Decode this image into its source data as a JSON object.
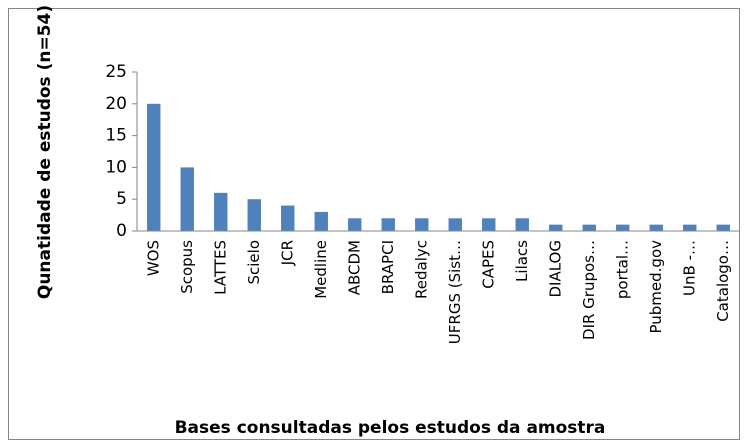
{
  "chart_data": {
    "type": "bar",
    "x_label": "Bases consultadas pelos estudos da amostra",
    "y_label": "Qunatidade de estudos (n=54)",
    "categories": [
      "WOS",
      "Scopus",
      "LATTES",
      "Scielo",
      "JCR",
      "Medline",
      "ABCDM",
      "BRAPCI",
      "Redalyc",
      "UFRGS (Sist…",
      "CAPES",
      "Lilacs",
      "DIALOG",
      "DIR Grupos…",
      "portal…",
      "Pubmed.gov",
      "UnB -…",
      "Catalogo…"
    ],
    "values": [
      20,
      10,
      6,
      5,
      4,
      3,
      2,
      2,
      2,
      2,
      2,
      2,
      1,
      1,
      1,
      1,
      1,
      1
    ],
    "color": "#4f81bd",
    "ylim": [
      0,
      25
    ],
    "yticks": [
      0,
      5,
      10,
      15,
      20,
      25
    ],
    "grid": false
  }
}
